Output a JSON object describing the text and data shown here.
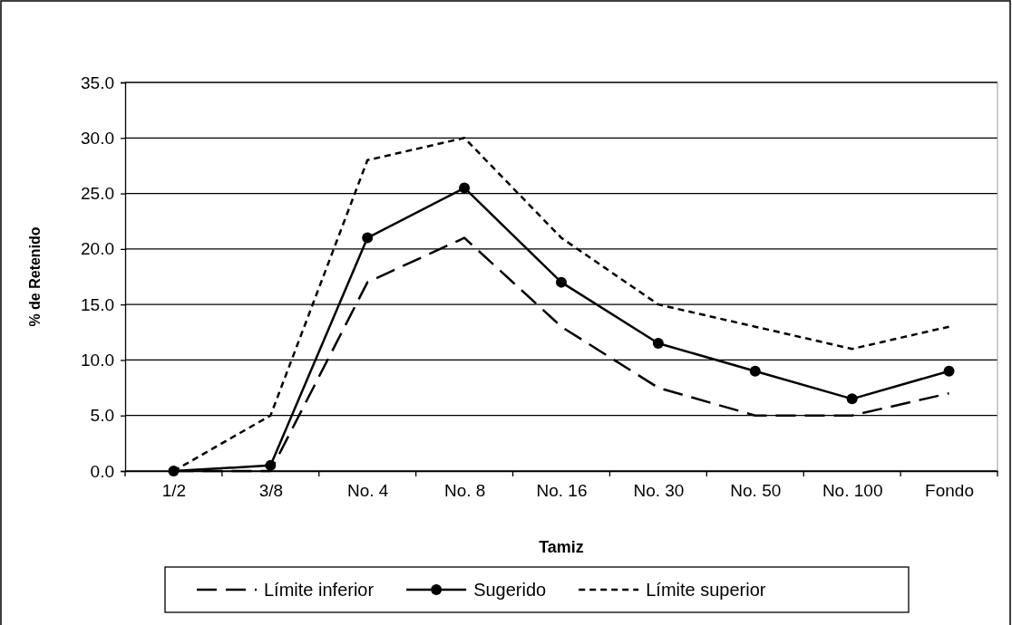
{
  "chart_data": {
    "type": "line",
    "xlabel": "Tamiz",
    "ylabel": "% de Retenido",
    "categories": [
      "1/2",
      "3/8",
      "No. 4",
      "No. 8",
      "No. 16",
      "No. 30",
      "No. 50",
      "No. 100",
      "Fondo"
    ],
    "series": [
      {
        "name": "Límite inferior",
        "color": "#000000",
        "line_style": "dashed",
        "marker": "none",
        "values": [
          0,
          0,
          17,
          21,
          13,
          7.5,
          5,
          5,
          7
        ]
      },
      {
        "name": "Sugerido",
        "color": "#000000",
        "line_style": "solid",
        "marker": "circle",
        "values": [
          0,
          0.5,
          21,
          25.5,
          17,
          11.5,
          9,
          6.5,
          9
        ]
      },
      {
        "name": "Límite superior",
        "color": "#000000",
        "line_style": "dotted",
        "marker": "none",
        "values": [
          0,
          5,
          28,
          30,
          21,
          15,
          13,
          11,
          13
        ]
      }
    ],
    "ylim": [
      0,
      35
    ],
    "yticks": [
      {
        "value": 0,
        "label": "0.0"
      },
      {
        "value": 5,
        "label": "5.0"
      },
      {
        "value": 10,
        "label": "10.0"
      },
      {
        "value": 15,
        "label": "15.0"
      },
      {
        "value": 20,
        "label": "20.0"
      },
      {
        "value": 25,
        "label": "25.0"
      },
      {
        "value": 30,
        "label": "30.0"
      },
      {
        "value": 35,
        "label": "35.0"
      }
    ],
    "grid": "y",
    "legend": "bottom"
  }
}
